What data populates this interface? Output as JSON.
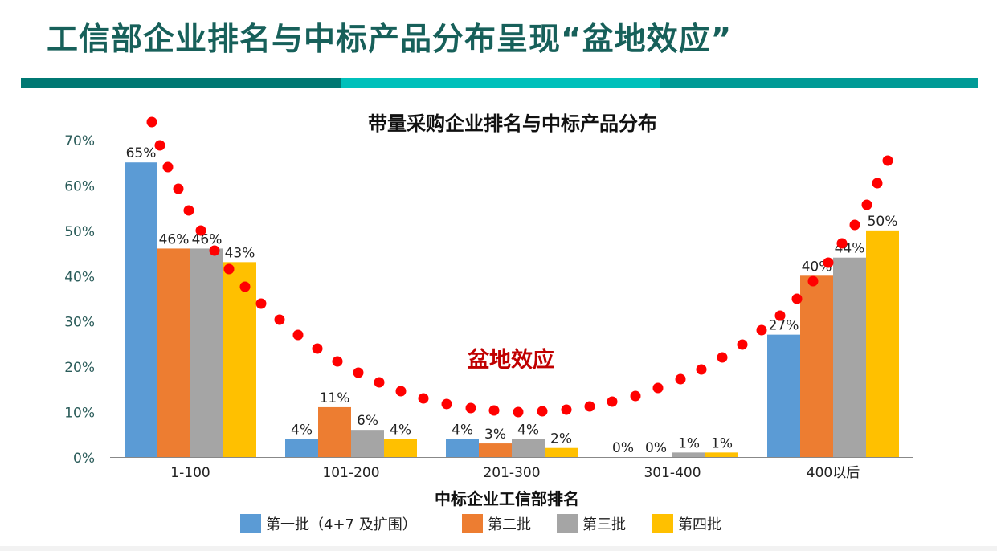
{
  "slide": {
    "title": "工信部企业排名与中标产品分布呈现“盆地效应”",
    "band_colors": [
      "#007873",
      "#00c0bb",
      "#009a96"
    ]
  },
  "chart_data": {
    "type": "bar",
    "title": "带量采购企业排名与中标产品分布",
    "xlabel": "中标企业工信部排名",
    "ylabel": "",
    "ylim": [
      0,
      70
    ],
    "yticks": [
      "0%",
      "10%",
      "20%",
      "30%",
      "40%",
      "50%",
      "60%",
      "70%"
    ],
    "categories": [
      "1-100",
      "101-200",
      "201-300",
      "301-400",
      "400以后"
    ],
    "series": [
      {
        "name": "第一批（4+7 及扩围）",
        "color": "#5b9bd5",
        "values": [
          65,
          4,
          4,
          0,
          27
        ],
        "labels": [
          "65%",
          "4%",
          "4%",
          "0%",
          "27%"
        ]
      },
      {
        "name": "第二批",
        "color": "#ed7d31",
        "values": [
          46,
          11,
          3,
          0,
          40
        ],
        "labels": [
          "46%",
          "11%",
          "3%",
          "0%",
          "40%"
        ]
      },
      {
        "name": "第三批",
        "color": "#a5a5a5",
        "values": [
          46,
          6,
          4,
          1,
          44
        ],
        "labels": [
          "46%",
          "6%",
          "4%",
          "1%",
          "44%"
        ]
      },
      {
        "name": "第四批",
        "color": "#ffc000",
        "values": [
          43,
          4,
          2,
          1,
          50
        ],
        "labels": [
          "43%",
          "4%",
          "2%",
          "1%",
          "50%"
        ]
      }
    ],
    "annotation": {
      "text": "盆地效应",
      "color": "#c00000"
    },
    "legend_position": "bottom",
    "grid": false
  }
}
